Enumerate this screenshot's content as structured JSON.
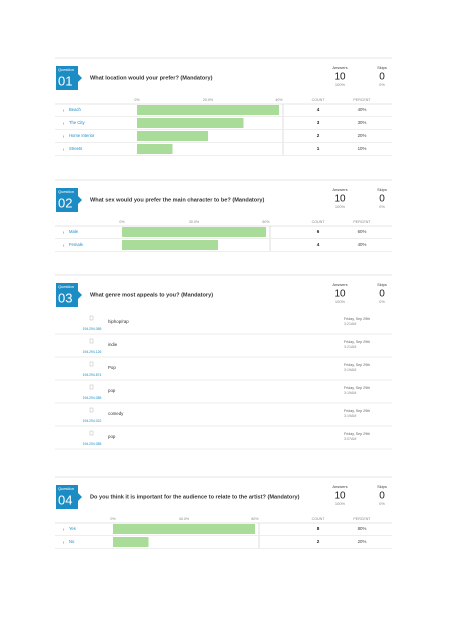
{
  "questions": [
    {
      "badge": "Question",
      "number": "01",
      "title": "What location would your prefer? (Mandatory)",
      "answers": {
        "label": "Answers",
        "count": 10,
        "percent": "100%"
      },
      "skips": {
        "label": "Skips",
        "count": 0,
        "percent": "0%"
      },
      "chart": {
        "type": "bar",
        "columns": [
          "COUNT",
          "PERCENT"
        ],
        "xlim": [
          0,
          40
        ],
        "ticks": [
          {
            "value": 0,
            "label": "0%"
          },
          {
            "value": 20,
            "label": "20.0%"
          },
          {
            "value": 40,
            "label": "40%"
          }
        ],
        "categories": [
          "Beach",
          "The City",
          "Home Interior",
          "Streets"
        ],
        "counts": [
          4,
          3,
          2,
          1
        ],
        "values": [
          40,
          30,
          20,
          10
        ],
        "value_labels": [
          "40%",
          "30%",
          "20%",
          "10%"
        ]
      }
    },
    {
      "badge": "Question",
      "number": "02",
      "title": "What sex would you prefer the main character to be? (Mandatory)",
      "answers": {
        "label": "Answers",
        "count": 10,
        "percent": "100%"
      },
      "skips": {
        "label": "Skips",
        "count": 0,
        "percent": "0%"
      },
      "chart": {
        "type": "bar",
        "columns": [
          "COUNT",
          "PERCENT"
        ],
        "xlim": [
          0,
          60
        ],
        "ticks": [
          {
            "value": 0,
            "label": "0%"
          },
          {
            "value": 30,
            "label": "30.0%"
          },
          {
            "value": 60,
            "label": "60%"
          }
        ],
        "categories": [
          "Male",
          "Female"
        ],
        "counts": [
          6,
          4
        ],
        "values": [
          60,
          40
        ],
        "value_labels": [
          "60%",
          "40%"
        ]
      }
    },
    {
      "badge": "Question",
      "number": "03",
      "title": "What genre most appeals to you? (Mandatory)",
      "answers": {
        "label": "Answers",
        "count": 10,
        "percent": "100%"
      },
      "skips": {
        "label": "Skips",
        "count": 0,
        "percent": "0%"
      },
      "responses": [
        {
          "ip": "194.294.085",
          "text": "hiphop/rap",
          "date": "Friday, Sep 29th",
          "time": "3:21AM"
        },
        {
          "ip": "194.294.126",
          "text": "indie",
          "date": "Friday, Sep 29th",
          "time": "3:21AM"
        },
        {
          "ip": "194.294.874",
          "text": "Pop",
          "date": "Friday, Sep 29th",
          "time": "3:19AM"
        },
        {
          "ip": "194.294.085",
          "text": "pop",
          "date": "Friday, Sep 29th",
          "time": "3:19AM"
        },
        {
          "ip": "194.294.022",
          "text": "comedy",
          "date": "Friday, Sep 29th",
          "time": "3:19AM"
        },
        {
          "ip": "194.294.085",
          "text": "pop",
          "date": "Friday, Sep 29th",
          "time": "3:07AM"
        }
      ]
    },
    {
      "badge": "Question",
      "number": "04",
      "title": "Do you think it is important for the audience to relate to the artist? (Mandatory)",
      "answers": {
        "label": "Answers",
        "count": 10,
        "percent": "100%"
      },
      "skips": {
        "label": "Skips",
        "count": 0,
        "percent": "0%"
      },
      "chart": {
        "type": "bar",
        "columns": [
          "COUNT",
          "PERCENT"
        ],
        "xlim": [
          0,
          80
        ],
        "ticks": [
          {
            "value": 0,
            "label": "0%"
          },
          {
            "value": 40,
            "label": "40.0%"
          },
          {
            "value": 80,
            "label": "80%"
          }
        ],
        "categories": [
          "Yes",
          "No"
        ],
        "counts": [
          8,
          2
        ],
        "values": [
          80,
          20
        ],
        "value_labels": [
          "80%",
          "20%"
        ]
      }
    }
  ]
}
